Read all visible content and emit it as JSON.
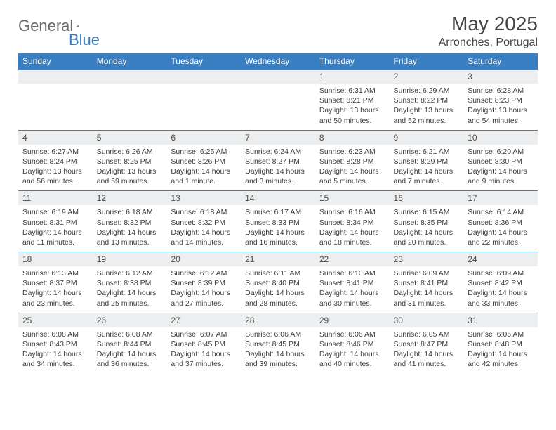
{
  "logo": {
    "part1": "General",
    "part2": "Blue",
    "shape_color": "#3a7fc2"
  },
  "title": "May 2025",
  "location": "Arronches, Portugal",
  "colors": {
    "header_bg": "#3a7fc2",
    "header_fg": "#ffffff",
    "daynum_bg": "#eceeef",
    "rule": "#3a7fc2",
    "text": "#333333"
  },
  "days_of_week": [
    "Sunday",
    "Monday",
    "Tuesday",
    "Wednesday",
    "Thursday",
    "Friday",
    "Saturday"
  ],
  "weeks": [
    [
      null,
      null,
      null,
      null,
      {
        "n": "1",
        "sr": "Sunrise: 6:31 AM",
        "ss": "Sunset: 8:21 PM",
        "dl": "Daylight: 13 hours and 50 minutes."
      },
      {
        "n": "2",
        "sr": "Sunrise: 6:29 AM",
        "ss": "Sunset: 8:22 PM",
        "dl": "Daylight: 13 hours and 52 minutes."
      },
      {
        "n": "3",
        "sr": "Sunrise: 6:28 AM",
        "ss": "Sunset: 8:23 PM",
        "dl": "Daylight: 13 hours and 54 minutes."
      }
    ],
    [
      {
        "n": "4",
        "sr": "Sunrise: 6:27 AM",
        "ss": "Sunset: 8:24 PM",
        "dl": "Daylight: 13 hours and 56 minutes."
      },
      {
        "n": "5",
        "sr": "Sunrise: 6:26 AM",
        "ss": "Sunset: 8:25 PM",
        "dl": "Daylight: 13 hours and 59 minutes."
      },
      {
        "n": "6",
        "sr": "Sunrise: 6:25 AM",
        "ss": "Sunset: 8:26 PM",
        "dl": "Daylight: 14 hours and 1 minute."
      },
      {
        "n": "7",
        "sr": "Sunrise: 6:24 AM",
        "ss": "Sunset: 8:27 PM",
        "dl": "Daylight: 14 hours and 3 minutes."
      },
      {
        "n": "8",
        "sr": "Sunrise: 6:23 AM",
        "ss": "Sunset: 8:28 PM",
        "dl": "Daylight: 14 hours and 5 minutes."
      },
      {
        "n": "9",
        "sr": "Sunrise: 6:21 AM",
        "ss": "Sunset: 8:29 PM",
        "dl": "Daylight: 14 hours and 7 minutes."
      },
      {
        "n": "10",
        "sr": "Sunrise: 6:20 AM",
        "ss": "Sunset: 8:30 PM",
        "dl": "Daylight: 14 hours and 9 minutes."
      }
    ],
    [
      {
        "n": "11",
        "sr": "Sunrise: 6:19 AM",
        "ss": "Sunset: 8:31 PM",
        "dl": "Daylight: 14 hours and 11 minutes."
      },
      {
        "n": "12",
        "sr": "Sunrise: 6:18 AM",
        "ss": "Sunset: 8:32 PM",
        "dl": "Daylight: 14 hours and 13 minutes."
      },
      {
        "n": "13",
        "sr": "Sunrise: 6:18 AM",
        "ss": "Sunset: 8:32 PM",
        "dl": "Daylight: 14 hours and 14 minutes."
      },
      {
        "n": "14",
        "sr": "Sunrise: 6:17 AM",
        "ss": "Sunset: 8:33 PM",
        "dl": "Daylight: 14 hours and 16 minutes."
      },
      {
        "n": "15",
        "sr": "Sunrise: 6:16 AM",
        "ss": "Sunset: 8:34 PM",
        "dl": "Daylight: 14 hours and 18 minutes."
      },
      {
        "n": "16",
        "sr": "Sunrise: 6:15 AM",
        "ss": "Sunset: 8:35 PM",
        "dl": "Daylight: 14 hours and 20 minutes."
      },
      {
        "n": "17",
        "sr": "Sunrise: 6:14 AM",
        "ss": "Sunset: 8:36 PM",
        "dl": "Daylight: 14 hours and 22 minutes."
      }
    ],
    [
      {
        "n": "18",
        "sr": "Sunrise: 6:13 AM",
        "ss": "Sunset: 8:37 PM",
        "dl": "Daylight: 14 hours and 23 minutes."
      },
      {
        "n": "19",
        "sr": "Sunrise: 6:12 AM",
        "ss": "Sunset: 8:38 PM",
        "dl": "Daylight: 14 hours and 25 minutes."
      },
      {
        "n": "20",
        "sr": "Sunrise: 6:12 AM",
        "ss": "Sunset: 8:39 PM",
        "dl": "Daylight: 14 hours and 27 minutes."
      },
      {
        "n": "21",
        "sr": "Sunrise: 6:11 AM",
        "ss": "Sunset: 8:40 PM",
        "dl": "Daylight: 14 hours and 28 minutes."
      },
      {
        "n": "22",
        "sr": "Sunrise: 6:10 AM",
        "ss": "Sunset: 8:41 PM",
        "dl": "Daylight: 14 hours and 30 minutes."
      },
      {
        "n": "23",
        "sr": "Sunrise: 6:09 AM",
        "ss": "Sunset: 8:41 PM",
        "dl": "Daylight: 14 hours and 31 minutes."
      },
      {
        "n": "24",
        "sr": "Sunrise: 6:09 AM",
        "ss": "Sunset: 8:42 PM",
        "dl": "Daylight: 14 hours and 33 minutes."
      }
    ],
    [
      {
        "n": "25",
        "sr": "Sunrise: 6:08 AM",
        "ss": "Sunset: 8:43 PM",
        "dl": "Daylight: 14 hours and 34 minutes."
      },
      {
        "n": "26",
        "sr": "Sunrise: 6:08 AM",
        "ss": "Sunset: 8:44 PM",
        "dl": "Daylight: 14 hours and 36 minutes."
      },
      {
        "n": "27",
        "sr": "Sunrise: 6:07 AM",
        "ss": "Sunset: 8:45 PM",
        "dl": "Daylight: 14 hours and 37 minutes."
      },
      {
        "n": "28",
        "sr": "Sunrise: 6:06 AM",
        "ss": "Sunset: 8:45 PM",
        "dl": "Daylight: 14 hours and 39 minutes."
      },
      {
        "n": "29",
        "sr": "Sunrise: 6:06 AM",
        "ss": "Sunset: 8:46 PM",
        "dl": "Daylight: 14 hours and 40 minutes."
      },
      {
        "n": "30",
        "sr": "Sunrise: 6:05 AM",
        "ss": "Sunset: 8:47 PM",
        "dl": "Daylight: 14 hours and 41 minutes."
      },
      {
        "n": "31",
        "sr": "Sunrise: 6:05 AM",
        "ss": "Sunset: 8:48 PM",
        "dl": "Daylight: 14 hours and 42 minutes."
      }
    ]
  ]
}
